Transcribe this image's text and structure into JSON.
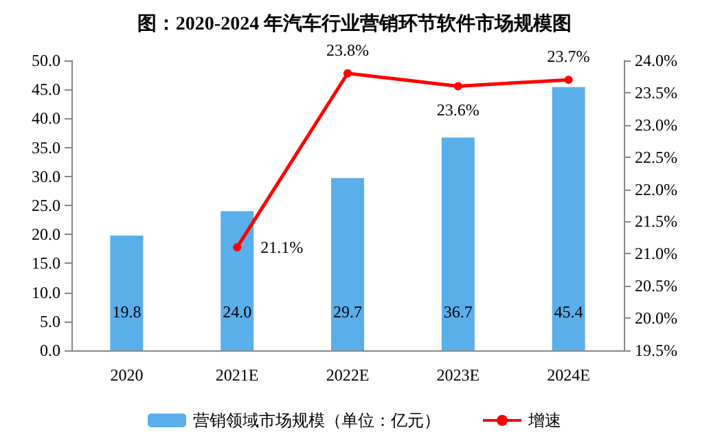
{
  "chart_data": {
    "type": "bar",
    "title": "图：2020-2024 年汽车行业营销环节软件市场规模图",
    "categories": [
      "2020",
      "2021E",
      "2022E",
      "2023E",
      "2024E"
    ],
    "series": [
      {
        "name": "营销领域市场规模（单位：亿元）",
        "color": "#5aaeea",
        "values": [
          19.8,
          24.0,
          29.7,
          36.7,
          45.4
        ],
        "value_labels": [
          "19.8",
          "24.0",
          "29.7",
          "36.7",
          "45.4"
        ]
      },
      {
        "name": "增速",
        "type": "line",
        "axis": "y2",
        "color": "#ff0000",
        "marker": "circle",
        "values": [
          null,
          21.1,
          23.8,
          23.6,
          23.7
        ],
        "value_labels": [
          null,
          "21.1%",
          "23.8%",
          "23.6%",
          "23.7%"
        ]
      }
    ],
    "ylim": [
      0,
      50
    ],
    "yticks": [
      {
        "value": 0,
        "label": "0.0"
      },
      {
        "value": 5,
        "label": "5.0"
      },
      {
        "value": 10,
        "label": "10.0"
      },
      {
        "value": 15,
        "label": "15.0"
      },
      {
        "value": 20,
        "label": "20.0"
      },
      {
        "value": 25,
        "label": "25.0"
      },
      {
        "value": 30,
        "label": "30.0"
      },
      {
        "value": 35,
        "label": "35.0"
      },
      {
        "value": 40,
        "label": "40.0"
      },
      {
        "value": 45,
        "label": "45.0"
      },
      {
        "value": 50,
        "label": "50.0"
      }
    ],
    "y2lim": [
      19.5,
      24
    ],
    "y2ticks": [
      {
        "value": 19.5,
        "label": "19.5%"
      },
      {
        "value": 20,
        "label": "20.0%"
      },
      {
        "value": 20.5,
        "label": "20.5%"
      },
      {
        "value": 21,
        "label": "21.0%"
      },
      {
        "value": 21.5,
        "label": "21.5%"
      },
      {
        "value": 22,
        "label": "22.0%"
      },
      {
        "value": 22.5,
        "label": "22.5%"
      },
      {
        "value": 23,
        "label": "23.0%"
      },
      {
        "value": 23.5,
        "label": "23.5%"
      },
      {
        "value": 24,
        "label": "24.0%"
      }
    ],
    "legend": "bottom",
    "grid": false
  }
}
